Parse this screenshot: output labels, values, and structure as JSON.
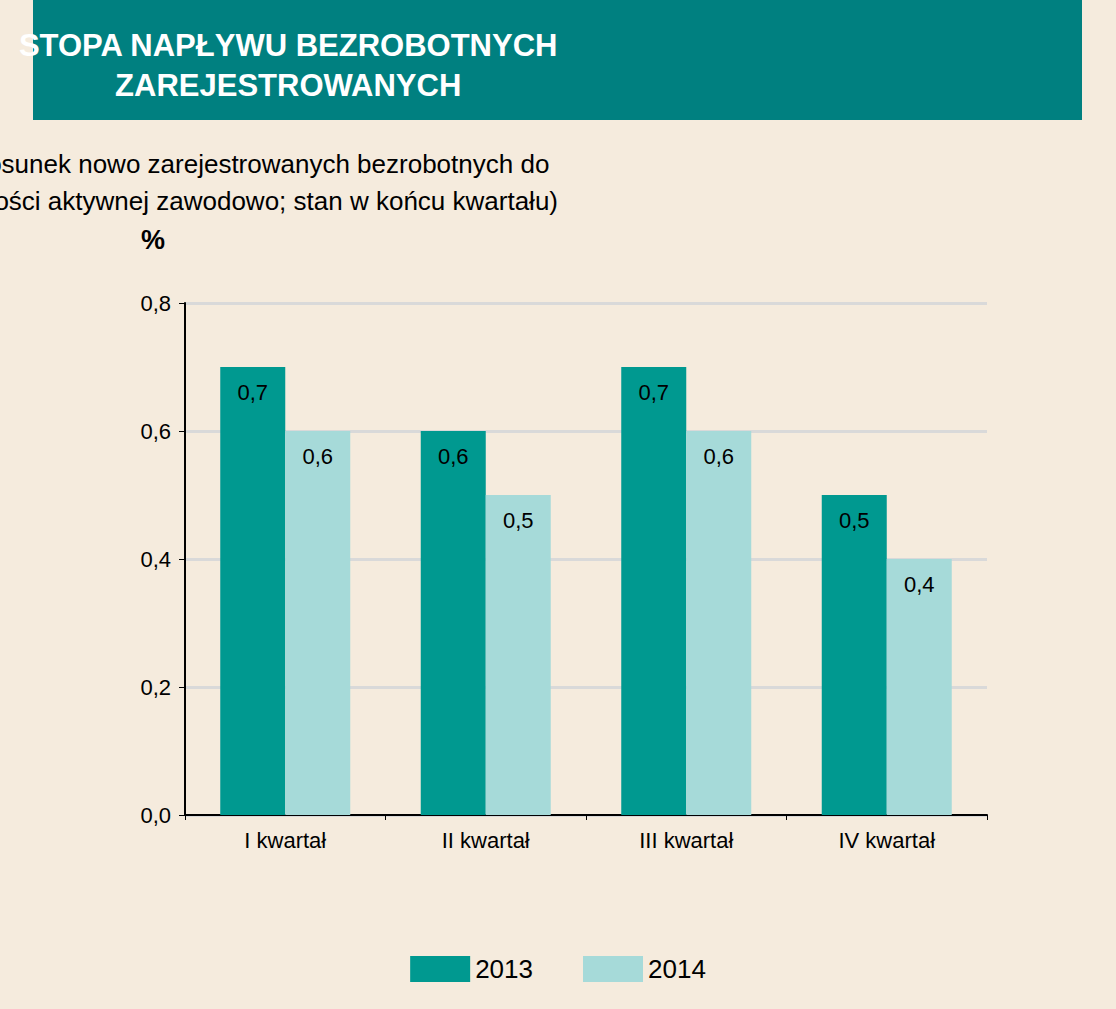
{
  "chart_data": {
    "type": "bar",
    "title": "STOPA NAPŁYWU BEZROBOTNYCH\nZAREJESTROWANYCH",
    "subtitle": "(Stosunek nowo zarejestrowanych bezrobotnych do\nludności aktywnej zawodowo; stan w końcu kwartału)",
    "y_label": "%",
    "categories": [
      "I kwartał",
      "II kwartał",
      "III kwartał",
      "IV kwartał"
    ],
    "series": [
      {
        "name": "2013",
        "color": "#009990",
        "values": [
          0.7,
          0.6,
          0.7,
          0.5
        ],
        "value_labels": [
          "0,7",
          "0,6",
          "0,7",
          "0,5"
        ]
      },
      {
        "name": "2014",
        "color": "#a6dad9",
        "values": [
          0.6,
          0.5,
          0.6,
          0.4
        ],
        "value_labels": [
          "0,6",
          "0,5",
          "0,6",
          "0,4"
        ]
      }
    ],
    "ylim": [
      0,
      0.8
    ],
    "yticks": [
      {
        "value": 0,
        "label": "0,0"
      },
      {
        "value": 0.2,
        "label": "0,2"
      },
      {
        "value": 0.4,
        "label": "0,4"
      },
      {
        "value": 0.6,
        "label": "0,6"
      },
      {
        "value": 0.8,
        "label": "0,8"
      }
    ],
    "grid": true,
    "legend": "bottom",
    "data_labels": true
  }
}
